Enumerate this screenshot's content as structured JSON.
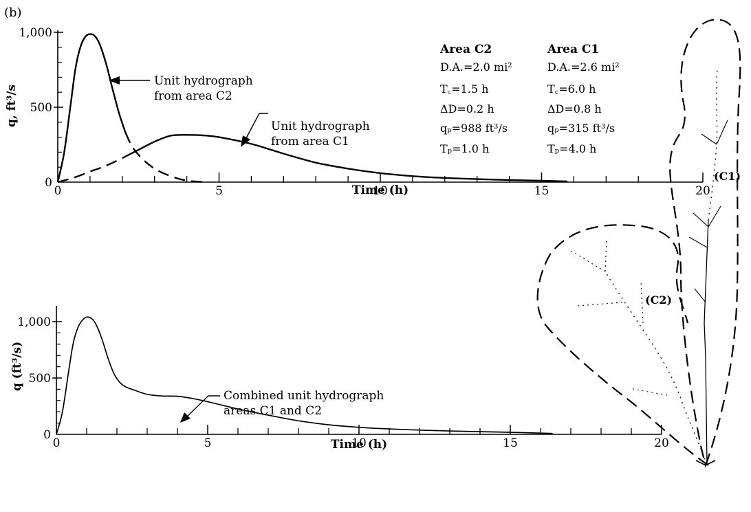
{
  "panel_label": "(b)",
  "chart_data": [
    {
      "type": "line",
      "xlabel": "Time (h)",
      "ylabel": "q, ft³/s",
      "xlim": [
        0,
        20
      ],
      "ylim": [
        0,
        1000
      ],
      "x_ticks": [
        0,
        5,
        10,
        15,
        20
      ],
      "y_ticks": [
        0,
        500,
        1000
      ],
      "x_tick_labels": [
        "0",
        "5",
        "10",
        "15",
        "20"
      ],
      "y_tick_labels": [
        "0",
        "500",
        "1,000"
      ],
      "series": [
        {
          "style": "solid-then-dashed",
          "points": [
            [
              0,
              0
            ],
            [
              0.2,
              200
            ],
            [
              0.4,
              520
            ],
            [
              0.55,
              760
            ],
            [
              0.7,
              900
            ],
            [
              0.85,
              970
            ],
            [
              1.0,
              988
            ],
            [
              1.15,
              975
            ],
            [
              1.3,
              920
            ],
            [
              1.5,
              790
            ],
            [
              1.7,
              620
            ],
            [
              1.9,
              460
            ],
            [
              2.1,
              330
            ],
            [
              2.3,
              240
            ],
            [
              2.6,
              160
            ],
            [
              3.0,
              90
            ],
            [
              3.5,
              40
            ],
            [
              4.0,
              10
            ],
            [
              4.6,
              0
            ]
          ],
          "solid_until_x": 2.2
        },
        {
          "style": "dashed-then-solid",
          "points": [
            [
              0,
              0
            ],
            [
              0.5,
              30
            ],
            [
              1,
              70
            ],
            [
              1.5,
              110
            ],
            [
              2,
              160
            ],
            [
              2.5,
              215
            ],
            [
              3,
              270
            ],
            [
              3.5,
              310
            ],
            [
              4.0,
              315
            ],
            [
              4.5,
              312
            ],
            [
              5,
              300
            ],
            [
              6,
              255
            ],
            [
              7,
              190
            ],
            [
              8,
              130
            ],
            [
              9,
              90
            ],
            [
              10,
              60
            ],
            [
              11,
              40
            ],
            [
              12,
              28
            ],
            [
              13,
              20
            ],
            [
              14,
              14
            ],
            [
              15,
              9
            ],
            [
              15.8,
              5
            ]
          ],
          "dashed_until_x": 2.3
        }
      ],
      "annotations": [
        {
          "lines": [
            "Unit hydrograph",
            "from area C2"
          ]
        },
        {
          "lines": [
            "Unit hydrograph",
            "from area C1"
          ]
        }
      ]
    },
    {
      "type": "line",
      "xlabel": "Time (h)",
      "ylabel": "q (ft³/s)",
      "xlim": [
        0,
        20
      ],
      "ylim": [
        0,
        1000
      ],
      "x_ticks": [
        0,
        5,
        10,
        15,
        20
      ],
      "y_ticks": [
        0,
        500,
        1000
      ],
      "x_tick_labels": [
        "0",
        "5",
        "10",
        "15",
        "20"
      ],
      "y_tick_labels": [
        "0",
        "500",
        "1,000"
      ],
      "series": [
        {
          "style": "solid",
          "points": [
            [
              0,
              0
            ],
            [
              0.2,
              200
            ],
            [
              0.4,
              550
            ],
            [
              0.55,
              800
            ],
            [
              0.7,
              940
            ],
            [
              0.85,
              1010
            ],
            [
              1.0,
              1040
            ],
            [
              1.15,
              1030
            ],
            [
              1.3,
              980
            ],
            [
              1.5,
              850
            ],
            [
              1.7,
              680
            ],
            [
              1.9,
              540
            ],
            [
              2.1,
              460
            ],
            [
              2.3,
              420
            ],
            [
              2.6,
              390
            ],
            [
              3.0,
              355
            ],
            [
              3.5,
              340
            ],
            [
              4.0,
              338
            ],
            [
              4.5,
              318
            ],
            [
              5,
              290
            ],
            [
              6,
              225
            ],
            [
              7,
              170
            ],
            [
              8,
              120
            ],
            [
              9,
              85
            ],
            [
              10,
              62
            ],
            [
              11,
              48
            ],
            [
              12,
              38
            ],
            [
              13,
              30
            ],
            [
              14,
              24
            ],
            [
              15,
              18
            ],
            [
              16.4,
              8
            ]
          ]
        }
      ],
      "annotations": [
        {
          "lines": [
            "Combined unit hydrograph",
            "areas C1 and C2"
          ]
        }
      ]
    }
  ],
  "parameters": {
    "c2": {
      "title": "Area C2",
      "da": "D.A.=2.0 mi²",
      "tc": "T꜀=1.5 h",
      "dd": "ΔD=0.2 h",
      "qp": "qₚ=988 ft³/s",
      "tp": "Tₚ=1.0 h"
    },
    "c1": {
      "title": "Area C1",
      "da": "D.A.=2.6 mi²",
      "tc": "T꜀=6.0 h",
      "dd": "ΔD=0.8 h",
      "qp": "qₚ=315 ft³/s",
      "tp": "Tₚ=4.0 h"
    }
  },
  "map": {
    "label_c1": "(C1)",
    "label_c2": "(C2)"
  }
}
